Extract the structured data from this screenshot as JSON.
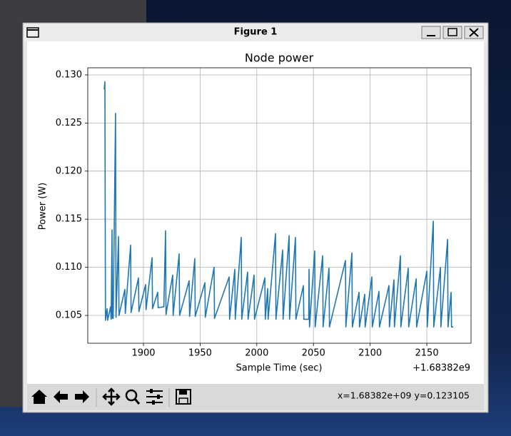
{
  "window": {
    "title": "Figure 1"
  },
  "toolbar": {
    "status": "x=1.68382e+09  y=0.123105"
  },
  "chart_data": {
    "type": "line",
    "title": "Node power",
    "x_label": "Sample Time (sec)",
    "y_label": "Power (W)",
    "x_offset_label": "+1.68382e9",
    "x": [
      1865.4,
      1866.0,
      1866.5,
      1867.9,
      1868.4,
      1871.0,
      1871.5,
      1872.3,
      1872.6,
      1872.9,
      1873.3,
      1875.4,
      1875.8,
      1878.0,
      1878.4,
      1883.6,
      1884.0,
      1888.7,
      1889.1,
      1895.6,
      1896.0,
      1901.9,
      1902.3,
      1907.6,
      1908.0,
      1912.6,
      1913.0,
      1918.0,
      1919.5,
      1919.9,
      1925.8,
      1926.2,
      1931.5,
      1931.9,
      1940.3,
      1940.7,
      1945.3,
      1945.7,
      1954.2,
      1954.6,
      1962.3,
      1962.7,
      1975.6,
      1976.0,
      1980.6,
      1981.0,
      1986.3,
      1986.7,
      1991.9,
      1992.3,
      1997.6,
      1998.0,
      2007.1,
      2007.5,
      2009.6,
      2010.0,
      2016.5,
      2016.9,
      2022.8,
      2023.2,
      2028.5,
      2028.9,
      2034.1,
      2034.5,
      2041.1,
      2041.5,
      2045.8,
      2046.1,
      2046.5,
      2051.1,
      2051.5,
      2058.1,
      2058.5,
      2063.7,
      2064.1,
      2078.2,
      2078.6,
      2083.9,
      2084.3,
      2090.2,
      2090.6,
      2095.2,
      2095.6,
      2101.5,
      2101.9,
      2107.8,
      2108.2,
      2116.6,
      2117.0,
      2121.0,
      2121.4,
      2126.7,
      2127.1,
      2133.6,
      2134.0,
      2140.6,
      2141.0,
      2150.0,
      2150.4,
      2155.7,
      2156.1,
      2162.0,
      2162.4,
      2168.3,
      2168.7,
      2171.4,
      2171.8,
      2173.3
    ],
    "series": [
      {
        "name": "Node power",
        "color": "#1f77b4",
        "values": [
          0.1285,
          0.1293,
          0.1045,
          0.1057,
          0.1045,
          0.1059,
          0.1046,
          0.1139,
          0.1047,
          0.1061,
          0.1047,
          0.126,
          0.1048,
          0.1132,
          0.105,
          0.1077,
          0.1052,
          0.1123,
          0.1053,
          0.1089,
          0.1054,
          0.1082,
          0.1056,
          0.111,
          0.1057,
          0.1074,
          0.1058,
          0.1059,
          0.1138,
          0.1051,
          0.1092,
          0.105,
          0.1114,
          0.105,
          0.1086,
          0.1049,
          0.1109,
          0.1049,
          0.1084,
          0.1048,
          0.11,
          0.1047,
          0.109,
          0.1046,
          0.1098,
          0.1046,
          0.1131,
          0.1046,
          0.1095,
          0.1046,
          0.1092,
          0.1046,
          0.1089,
          0.1046,
          0.1078,
          0.1046,
          0.1135,
          0.1046,
          0.1118,
          0.1046,
          0.1133,
          0.1046,
          0.1131,
          0.1046,
          0.1081,
          0.1046,
          0.1046,
          0.1098,
          0.1038,
          0.1117,
          0.1038,
          0.1112,
          0.1038,
          0.1099,
          0.1038,
          0.1107,
          0.1038,
          0.1115,
          0.1038,
          0.1074,
          0.1038,
          0.1072,
          0.1038,
          0.109,
          0.1038,
          0.1075,
          0.1038,
          0.1081,
          0.1038,
          0.1087,
          0.1038,
          0.1112,
          0.1038,
          0.1099,
          0.1038,
          0.1088,
          0.1038,
          0.1096,
          0.1038,
          0.1148,
          0.1038,
          0.11,
          0.1038,
          0.1129,
          0.1038,
          0.1074,
          0.1038,
          0.1038
        ]
      }
    ],
    "xlim": [
      1850.9,
      2189.0
    ],
    "xticks": [
      1900,
      1950,
      2000,
      2050,
      2100,
      2150
    ],
    "ylim": [
      0.10211,
      0.13074
    ],
    "yticks": [
      0.105,
      {
        "value": 0.11,
        "label": "0.110"
      },
      0.115,
      {
        "value": 0.12,
        "label": "0.120"
      },
      0.125,
      {
        "value": 0.13,
        "label": "0.130"
      }
    ],
    "grid": true
  }
}
